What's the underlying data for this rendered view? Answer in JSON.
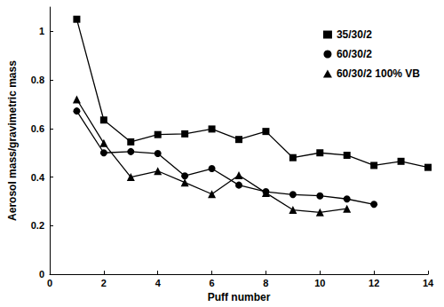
{
  "chart_data": {
    "type": "line",
    "x_label": "Puff number",
    "y_label": "Aerosol mass/gravimetric mass",
    "xlim": [
      0,
      14
    ],
    "xticks": [
      0,
      2,
      4,
      6,
      8,
      10,
      12,
      14
    ],
    "ylim": [
      0,
      1.1
    ],
    "yticks": [
      0,
      0.2,
      0.4,
      0.6,
      0.8,
      1
    ],
    "grid": false,
    "legend": "upper right",
    "series": [
      {
        "name": "35/30/2",
        "color": "#000000",
        "marker": "square",
        "x": [
          1,
          2,
          3,
          4,
          5,
          6,
          7,
          8,
          9,
          10,
          11,
          12,
          13,
          14
        ],
        "values": [
          1.05,
          0.635,
          0.545,
          0.575,
          0.578,
          0.598,
          0.555,
          0.588,
          0.48,
          0.5,
          0.49,
          0.448,
          0.465,
          0.44
        ]
      },
      {
        "name": "60/30/2",
        "color": "#000000",
        "marker": "circle",
        "x": [
          1,
          2,
          3,
          4,
          5,
          6,
          7,
          8,
          9,
          10,
          11,
          12
        ],
        "values": [
          0.672,
          0.5,
          0.505,
          0.497,
          0.405,
          0.435,
          0.367,
          0.34,
          0.328,
          0.323,
          0.31,
          0.288
        ]
      },
      {
        "name": "60/30/2 100% VB",
        "color": "#000000",
        "marker": "triangle",
        "x": [
          1,
          2,
          3,
          4,
          5,
          6,
          7,
          8,
          9,
          10,
          11
        ],
        "values": [
          0.72,
          0.54,
          0.4,
          0.425,
          0.378,
          0.33,
          0.408,
          0.335,
          0.265,
          0.255,
          0.27
        ]
      }
    ]
  }
}
